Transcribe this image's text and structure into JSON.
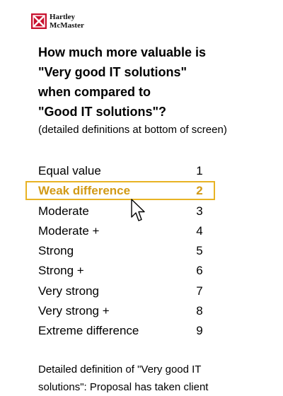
{
  "logo": {
    "line1": "Hartley",
    "line2": "McMaster",
    "brand_color": "#c8102e"
  },
  "question": {
    "lines": [
      "How much more valuable is",
      "\"Very good IT solutions\"",
      "when compared to",
      "\"Good IT solutions\"?"
    ],
    "note": "(detailed definitions at bottom of screen)"
  },
  "scale": {
    "selected_index": 1,
    "highlight_color": "#e8b324",
    "items": [
      {
        "label": "Equal value",
        "value": "1"
      },
      {
        "label": "Weak difference",
        "value": "2"
      },
      {
        "label": "Moderate",
        "value": "3"
      },
      {
        "label": "Moderate +",
        "value": "4"
      },
      {
        "label": "Strong",
        "value": "5"
      },
      {
        "label": "Strong +",
        "value": "6"
      },
      {
        "label": "Very strong",
        "value": "7"
      },
      {
        "label": "Very strong +",
        "value": "8"
      },
      {
        "label": "Extreme difference",
        "value": "9"
      }
    ]
  },
  "definition": {
    "line1": "Detailed definition of \"Very good IT",
    "line2": "solutions\": Proposal has taken client"
  },
  "cursor": {
    "icon": "pointer-arrow-icon"
  }
}
